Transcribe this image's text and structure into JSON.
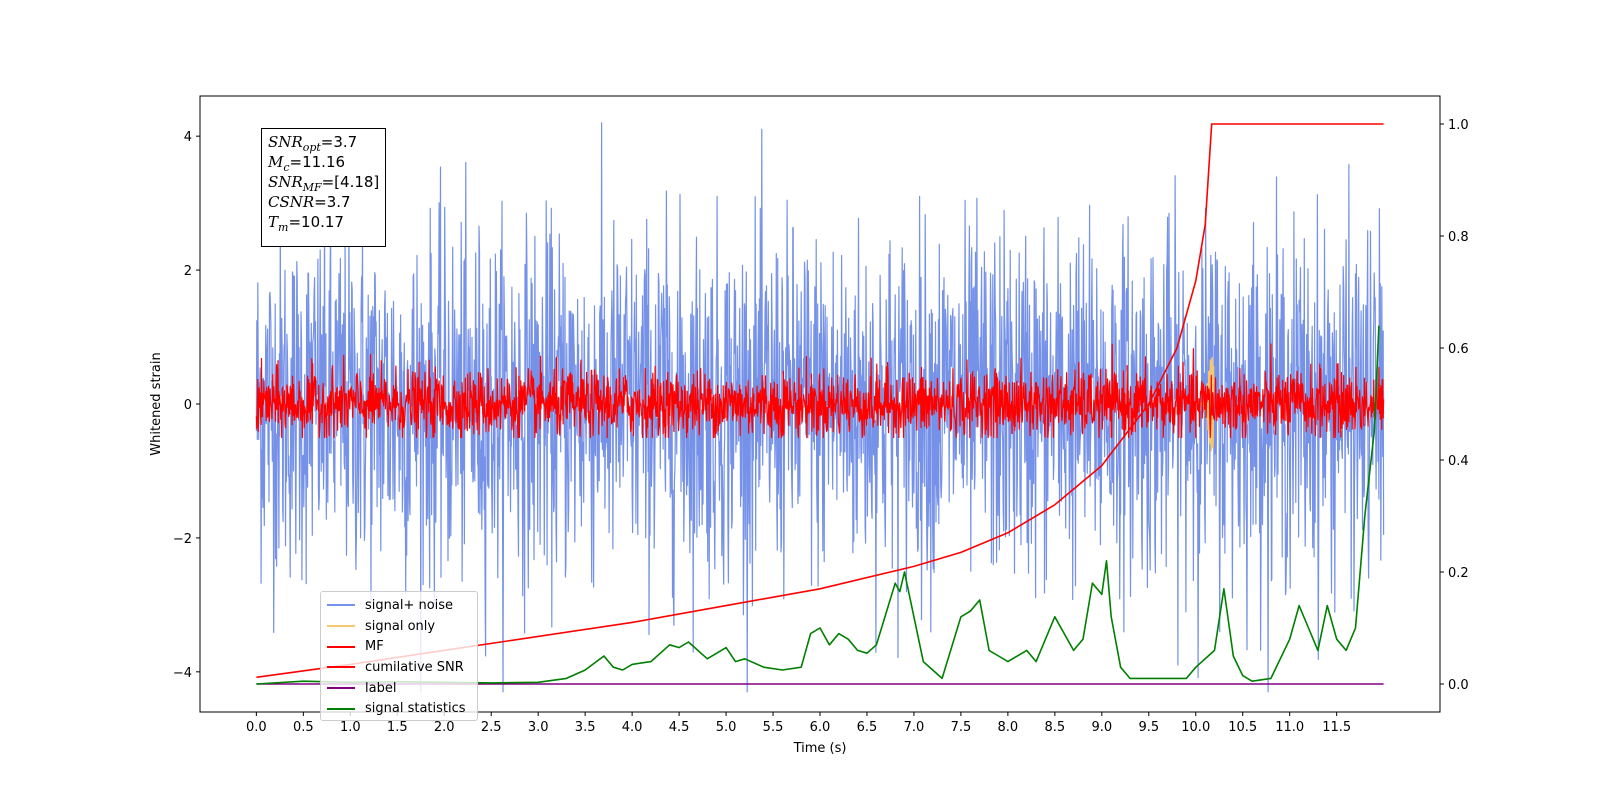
{
  "chart_data": {
    "type": "line",
    "title": "",
    "xlabel": "Time (s)",
    "ylabel": "Whitened strain",
    "y2label": "",
    "xlim": [
      -0.6,
      12.6
    ],
    "ylim": [
      -4.6,
      4.6
    ],
    "y2lim": [
      -0.05,
      1.05
    ],
    "xticks": [
      "0.0",
      "0.5",
      "1.0",
      "1.5",
      "2.0",
      "2.5",
      "3.0",
      "3.5",
      "4.0",
      "4.5",
      "5.0",
      "5.5",
      "6.0",
      "6.5",
      "7.0",
      "7.5",
      "8.0",
      "8.5",
      "9.0",
      "9.5",
      "10.0",
      "10.5",
      "11.0",
      "11.5"
    ],
    "yticks": [
      "4",
      "2",
      "0",
      "−2",
      "−4"
    ],
    "y2ticks": [
      "1.0",
      "0.8",
      "0.6",
      "0.4",
      "0.2",
      "0.0"
    ],
    "grid": false,
    "legend_position": "lower-left",
    "annotation": {
      "snr_opt": "=3.7",
      "mc": "=11.16",
      "snr_mf": "=[4.18]",
      "csnr": "=3.7",
      "tm": "=10.17"
    },
    "series": [
      {
        "name": "signal+ noise",
        "color": "#7592e8",
        "axis": "left",
        "kind": "noise",
        "x_range": [
          0,
          12.0
        ],
        "amplitude_std": 1.3,
        "y_range": [
          -4.3,
          4.2
        ]
      },
      {
        "name": "signal only",
        "color": "#f5c86e",
        "axis": "left",
        "kind": "chirp",
        "peak_time": 10.17,
        "peak_amplitude": 0.7
      },
      {
        "name": "MF",
        "color": "#ff0000",
        "axis": "left",
        "kind": "noise",
        "x_range": [
          0,
          12.0
        ],
        "amplitude_std": 0.25,
        "y_range": [
          -0.5,
          1.0
        ]
      },
      {
        "name": "cumilative SNR",
        "color": "#ff0000",
        "axis": "right",
        "x": [
          0.0,
          1.0,
          2.0,
          3.0,
          4.0,
          5.0,
          6.0,
          7.0,
          7.5,
          8.0,
          8.5,
          9.0,
          9.5,
          9.8,
          10.0,
          10.1,
          10.17,
          12.0
        ],
        "values": [
          0.012,
          0.035,
          0.06,
          0.085,
          0.11,
          0.14,
          0.17,
          0.21,
          0.235,
          0.27,
          0.32,
          0.39,
          0.5,
          0.6,
          0.72,
          0.82,
          1.0,
          1.0
        ]
      },
      {
        "name": "label",
        "color": "#800080",
        "axis": "right",
        "x": [
          0,
          12.0
        ],
        "values": [
          0.0,
          0.0
        ]
      },
      {
        "name": "signal statistics",
        "color": "#008000",
        "axis": "right",
        "x": [
          0.0,
          0.5,
          1.0,
          1.5,
          2.0,
          2.5,
          3.0,
          3.3,
          3.5,
          3.7,
          3.8,
          3.9,
          4.0,
          4.2,
          4.4,
          4.5,
          4.6,
          4.8,
          4.9,
          5.0,
          5.1,
          5.2,
          5.4,
          5.6,
          5.8,
          5.9,
          6.0,
          6.1,
          6.2,
          6.3,
          6.4,
          6.5,
          6.6,
          6.8,
          6.85,
          6.9,
          7.0,
          7.1,
          7.2,
          7.3,
          7.5,
          7.6,
          7.7,
          7.8,
          7.9,
          8.0,
          8.2,
          8.3,
          8.5,
          8.7,
          8.8,
          8.9,
          9.0,
          9.05,
          9.1,
          9.2,
          9.3,
          9.5,
          9.7,
          9.9,
          10.0,
          10.2,
          10.3,
          10.4,
          10.5,
          10.6,
          10.8,
          11.0,
          11.1,
          11.2,
          11.3,
          11.4,
          11.5,
          11.6,
          11.7,
          11.8,
          11.9,
          11.95
        ],
        "values": [
          0.0,
          0.005,
          0.003,
          0.004,
          0.003,
          0.002,
          0.003,
          0.01,
          0.025,
          0.05,
          0.03,
          0.025,
          0.035,
          0.04,
          0.07,
          0.065,
          0.075,
          0.045,
          0.055,
          0.065,
          0.04,
          0.045,
          0.03,
          0.025,
          0.03,
          0.09,
          0.1,
          0.07,
          0.09,
          0.08,
          0.06,
          0.055,
          0.07,
          0.18,
          0.165,
          0.2,
          0.12,
          0.04,
          0.025,
          0.01,
          0.12,
          0.13,
          0.15,
          0.06,
          0.05,
          0.04,
          0.06,
          0.04,
          0.12,
          0.06,
          0.08,
          0.18,
          0.16,
          0.22,
          0.12,
          0.03,
          0.01,
          0.01,
          0.01,
          0.01,
          0.03,
          0.06,
          0.17,
          0.05,
          0.015,
          0.005,
          0.01,
          0.08,
          0.14,
          0.1,
          0.06,
          0.14,
          0.08,
          0.06,
          0.1,
          0.3,
          0.45,
          0.64
        ]
      }
    ]
  }
}
